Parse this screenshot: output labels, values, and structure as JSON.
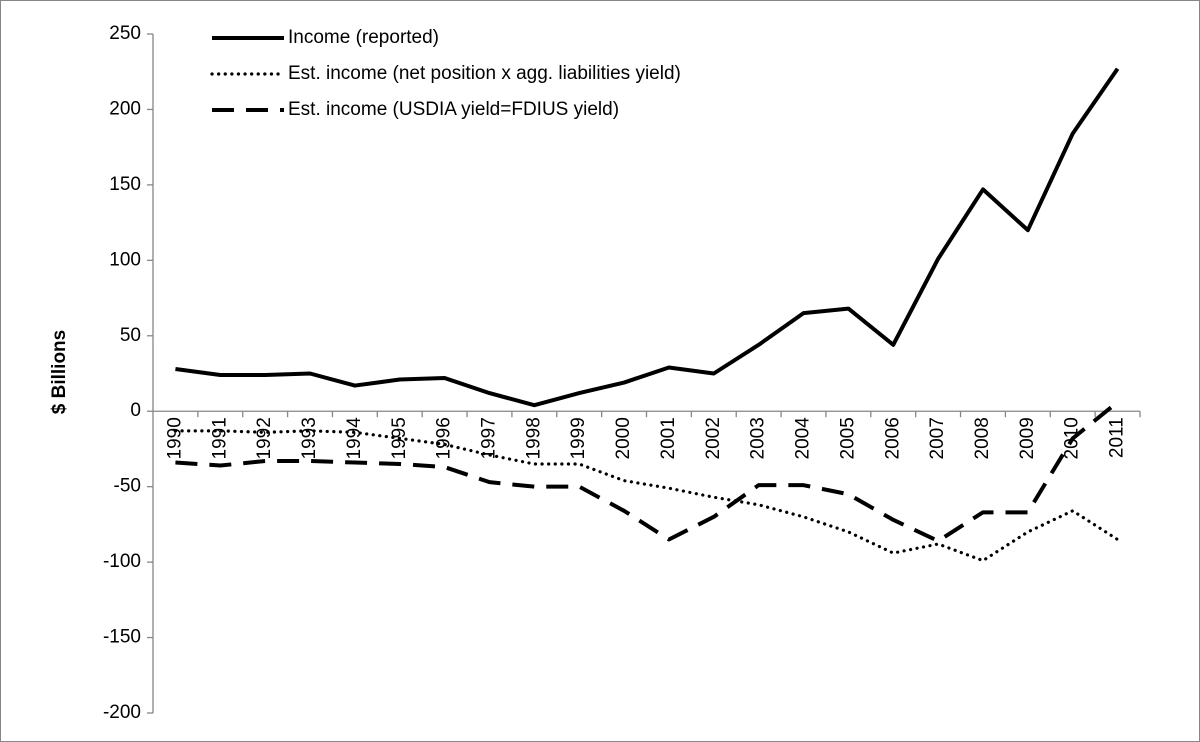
{
  "chart_data": {
    "type": "line",
    "y_label": "$ Billions",
    "categories": [
      "1990",
      "1991",
      "1992",
      "1993",
      "1994",
      "1995",
      "1996",
      "1997",
      "1998",
      "1999",
      "2000",
      "2001",
      "2002",
      "2003",
      "2004",
      "2005",
      "2006",
      "2007",
      "2008",
      "2009",
      "2010",
      "2011"
    ],
    "series": [
      {
        "name": "Income (reported)",
        "color": "#000000",
        "dash": "solid",
        "values": [
          28,
          24,
          24,
          25,
          17,
          21,
          22,
          12,
          4,
          12,
          19,
          29,
          25,
          44,
          65,
          68,
          44,
          101,
          147,
          120,
          184,
          227
        ]
      },
      {
        "name": "Est. income (net position x agg. liabilities yield)",
        "color": "#000000",
        "dash": "dotted",
        "values": [
          -13,
          -13,
          -14,
          -13,
          -14,
          -18,
          -22,
          -29,
          -35,
          -35,
          -46,
          -51,
          -57,
          -62,
          -70,
          -80,
          -94,
          -88,
          -99,
          -80,
          -66,
          -85
        ]
      },
      {
        "name": "Est. income (USDIA yield=FDIUS yield)",
        "color": "#000000",
        "dash": "dashed",
        "values": [
          -34,
          -36,
          -33,
          -33,
          -34,
          -35,
          -37,
          -47,
          -50,
          -50,
          -66,
          -85,
          -70,
          -49,
          -49,
          -55,
          -72,
          -86,
          -67,
          -67,
          -18,
          6
        ]
      }
    ],
    "ylim": [
      -200,
      250
    ],
    "yticks": [
      -200,
      -150,
      -100,
      -50,
      0,
      50,
      100,
      150,
      200,
      250
    ],
    "legend": "top-left"
  }
}
